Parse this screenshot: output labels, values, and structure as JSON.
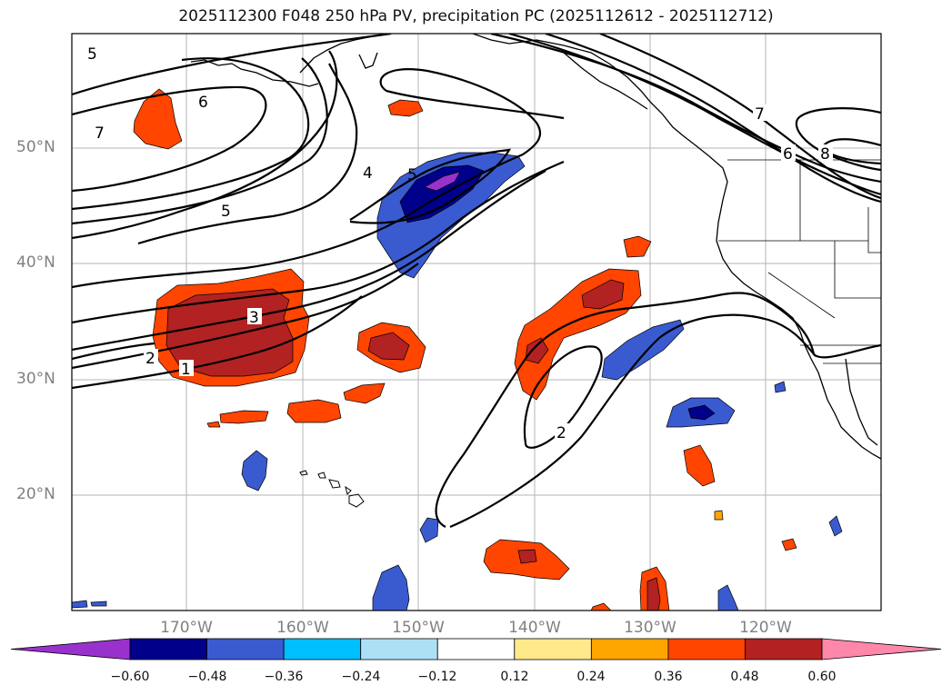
{
  "title": "2025112300 F048 250 hPa PV, precipitation PC (2025112612 - 2025112712)",
  "lat_labels": [
    "50°N",
    "40°N",
    "30°N",
    "20°N"
  ],
  "lon_labels": [
    "170°W",
    "160°W",
    "150°W",
    "140°W",
    "130°W",
    "120°W"
  ],
  "contour_labels": [
    "5",
    "6",
    "7",
    "5",
    "4",
    "5",
    "3",
    "2",
    "1",
    "2",
    "7",
    "6",
    "8"
  ],
  "colorbar": {
    "ticks": [
      "−0.60",
      "−0.48",
      "−0.36",
      "−0.24",
      "−0.12",
      "0.12",
      "0.24",
      "0.36",
      "0.48",
      "0.60"
    ],
    "colors": [
      "#9932CC",
      "#00008B",
      "#3A5BD0",
      "#00BFFF",
      "#ADE0F5",
      "#FFFFFF",
      "#FFE98A",
      "#FFA500",
      "#FF4500",
      "#B22222",
      "#FF88AA"
    ]
  }
}
